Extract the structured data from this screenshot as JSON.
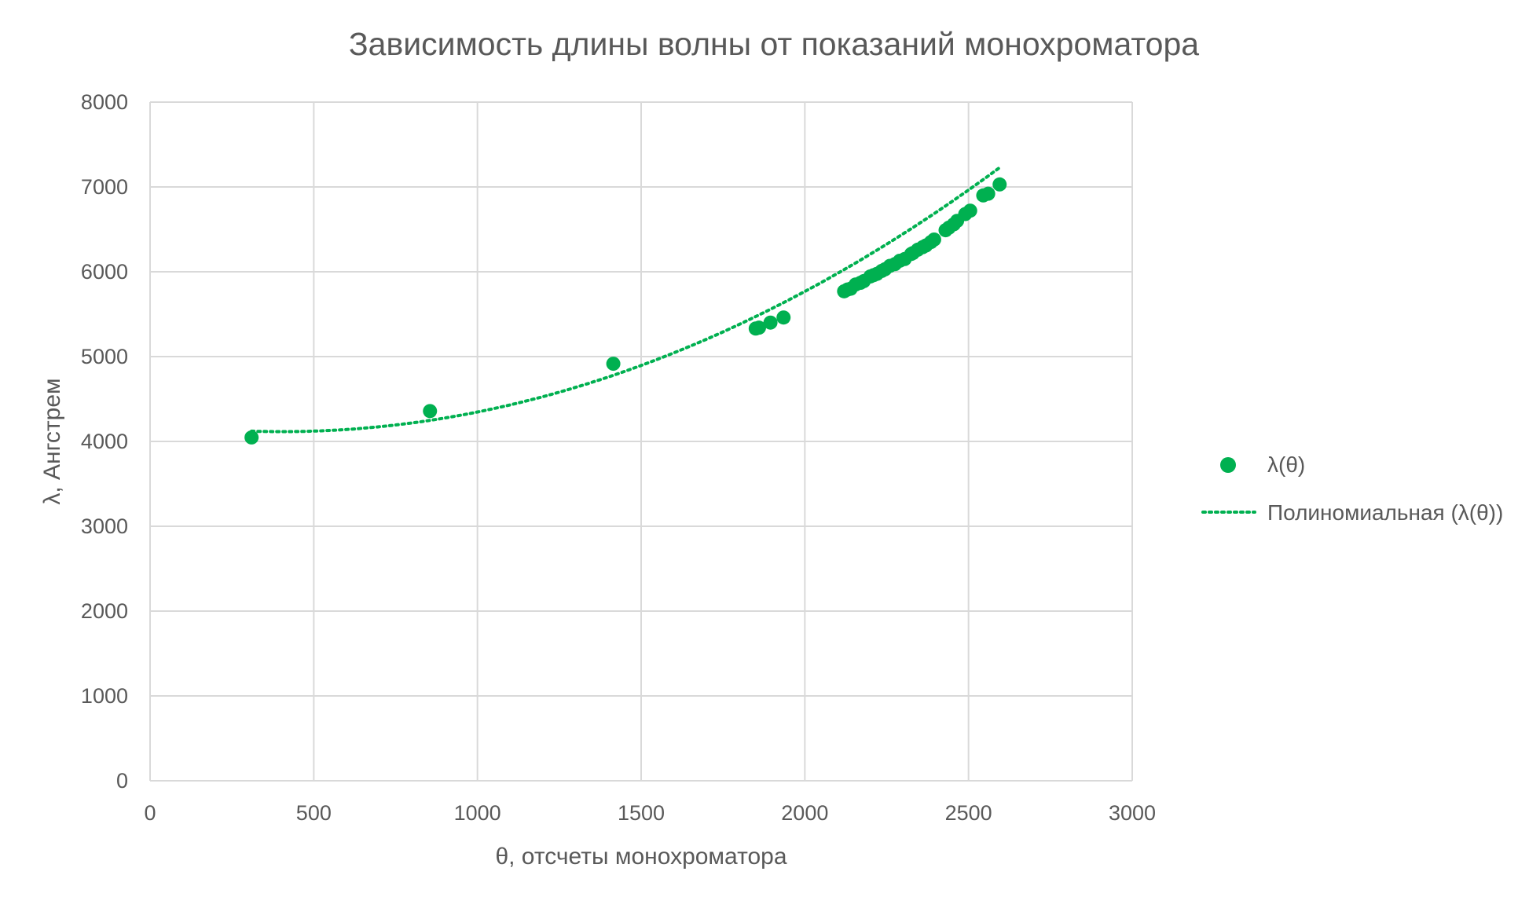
{
  "chart_data": {
    "type": "scatter",
    "title": "Зависимость длины волны от показаний монохроматора",
    "xlabel": "θ, отсчеты монохроматора",
    "ylabel": "λ, Ангстрем",
    "xlim": [
      0,
      3000
    ],
    "ylim": [
      0,
      8000
    ],
    "xticks": [
      0,
      500,
      1000,
      1500,
      2000,
      2500,
      3000
    ],
    "yticks": [
      0,
      1000,
      2000,
      3000,
      4000,
      5000,
      6000,
      7000,
      8000
    ],
    "grid": true,
    "legend_position": "right",
    "colors": {
      "marker": "#00b050",
      "trend": "#00b050",
      "grid": "#d9d9d9",
      "text": "#595959"
    },
    "series": [
      {
        "name": "λ(θ)",
        "kind": "scatter",
        "points": [
          [
            310,
            4047
          ],
          [
            855,
            4358
          ],
          [
            1415,
            4916
          ],
          [
            1850,
            5331
          ],
          [
            1860,
            5341
          ],
          [
            1895,
            5401
          ],
          [
            1935,
            5461
          ],
          [
            2120,
            5770
          ],
          [
            2130,
            5790
          ],
          [
            2140,
            5800
          ],
          [
            2155,
            5850
          ],
          [
            2170,
            5870
          ],
          [
            2180,
            5890
          ],
          [
            2200,
            5945
          ],
          [
            2210,
            5960
          ],
          [
            2220,
            5975
          ],
          [
            2235,
            6010
          ],
          [
            2245,
            6030
          ],
          [
            2260,
            6070
          ],
          [
            2275,
            6090
          ],
          [
            2290,
            6130
          ],
          [
            2305,
            6150
          ],
          [
            2325,
            6210
          ],
          [
            2330,
            6220
          ],
          [
            2345,
            6260
          ],
          [
            2360,
            6290
          ],
          [
            2370,
            6310
          ],
          [
            2385,
            6350
          ],
          [
            2395,
            6380
          ],
          [
            2430,
            6490
          ],
          [
            2440,
            6520
          ],
          [
            2455,
            6560
          ],
          [
            2465,
            6600
          ],
          [
            2490,
            6680
          ],
          [
            2505,
            6720
          ],
          [
            2545,
            6900
          ],
          [
            2560,
            6920
          ],
          [
            2595,
            7030
          ]
        ]
      },
      {
        "name": "Полиномиальная (λ(θ))",
        "kind": "trendline",
        "style": "dotted",
        "x_range": [
          310,
          2595
        ],
        "polynomial_coefficients_ascending": [
          4220,
          -0.52,
          0.000647
        ]
      }
    ]
  }
}
